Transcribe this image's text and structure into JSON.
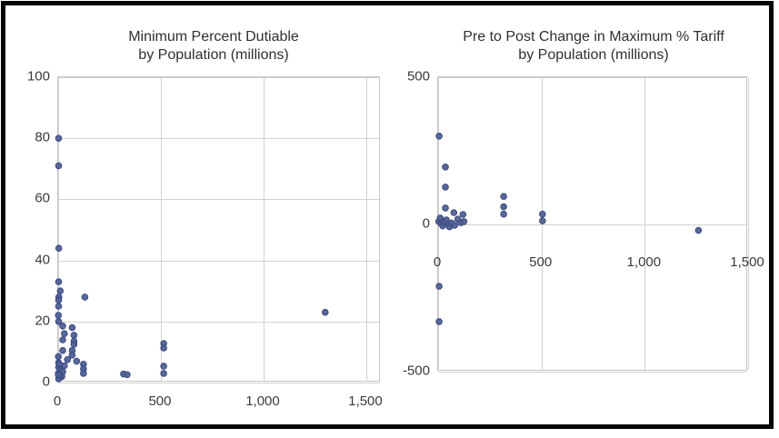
{
  "figure": {
    "background_color": "#ffffff",
    "frame_color": "#050505",
    "gridline_color": "#d2d2d2",
    "marker_fill": "#4f6094",
    "marker_stroke": "#3a4a80",
    "text_color": "#3a3a3a"
  },
  "chart_data": [
    {
      "type": "scatter",
      "title_lines": [
        "Minimum Percent Dutiable",
        "by Population (millions)"
      ],
      "xlabel": "",
      "ylabel": "",
      "xlim": [
        0,
        1571
      ],
      "ylim": [
        0,
        100
      ],
      "x_tick_values": [
        0,
        500,
        1000,
        1500
      ],
      "x_tick_labels": [
        "0",
        "500",
        "1,000",
        "1,500"
      ],
      "y_tick_values": [
        0,
        20,
        40,
        60,
        80,
        100
      ],
      "y_tick_labels": [
        "0",
        "20",
        "40",
        "60",
        "80",
        "100"
      ],
      "grid": true,
      "legend": "none",
      "points": [
        [
          2,
          80
        ],
        [
          2,
          71
        ],
        [
          3,
          44
        ],
        [
          2,
          33
        ],
        [
          10,
          30
        ],
        [
          3,
          28
        ],
        [
          130,
          28
        ],
        [
          2,
          27
        ],
        [
          2,
          25
        ],
        [
          1,
          22
        ],
        [
          1300,
          23
        ],
        [
          2,
          20
        ],
        [
          22,
          18.5
        ],
        [
          68,
          18
        ],
        [
          30,
          16
        ],
        [
          77,
          15.5
        ],
        [
          22,
          14
        ],
        [
          77,
          13.5
        ],
        [
          77,
          12.5
        ],
        [
          22,
          10.5
        ],
        [
          68,
          10.5
        ],
        [
          68,
          9
        ],
        [
          1,
          8.5
        ],
        [
          45,
          7.5
        ],
        [
          90,
          7
        ],
        [
          2,
          6.5
        ],
        [
          30,
          5.5
        ],
        [
          2,
          5
        ],
        [
          12,
          4.2
        ],
        [
          22,
          3.5
        ],
        [
          1,
          3
        ],
        [
          18,
          2
        ],
        [
          8,
          1.8
        ],
        [
          2,
          1.2
        ],
        [
          1,
          2.5
        ],
        [
          5,
          6
        ],
        [
          123,
          6
        ],
        [
          123,
          4.5
        ],
        [
          123,
          3
        ],
        [
          318,
          2.8
        ],
        [
          336,
          2.6
        ],
        [
          514,
          12.8
        ],
        [
          514,
          11.3
        ],
        [
          514,
          5.4
        ],
        [
          514,
          3
        ]
      ]
    },
    {
      "type": "scatter",
      "title_lines": [
        "Pre to Post Change in Maximum % Tariff",
        "by Population (millions)"
      ],
      "xlabel": "",
      "ylabel": "",
      "xlim": [
        0,
        1500
      ],
      "ylim": [
        -500,
        500
      ],
      "x_tick_values": [
        0,
        500,
        1000,
        1500
      ],
      "x_tick_labels": [
        "0",
        "500",
        "1,000",
        "1,500"
      ],
      "y_tick_values": [
        -500,
        0,
        500
      ],
      "y_tick_labels": [
        "-500",
        "0",
        "500"
      ],
      "grid": true,
      "legend": "none",
      "points": [
        [
          5,
          300
        ],
        [
          35,
          195
        ],
        [
          35,
          127
        ],
        [
          35,
          56
        ],
        [
          76,
          40
        ],
        [
          120,
          34
        ],
        [
          317,
          95
        ],
        [
          317,
          60
        ],
        [
          317,
          35
        ],
        [
          505,
          35
        ],
        [
          505,
          12
        ],
        [
          1260,
          -20
        ],
        [
          5,
          -210
        ],
        [
          5,
          -330
        ],
        [
          3,
          10
        ],
        [
          10,
          22
        ],
        [
          15,
          3
        ],
        [
          22,
          -5
        ],
        [
          30,
          8
        ],
        [
          40,
          15
        ],
        [
          48,
          0
        ],
        [
          55,
          -8
        ],
        [
          65,
          5
        ],
        [
          80,
          -3
        ],
        [
          95,
          18
        ],
        [
          110,
          6
        ],
        [
          125,
          10
        ]
      ]
    }
  ]
}
